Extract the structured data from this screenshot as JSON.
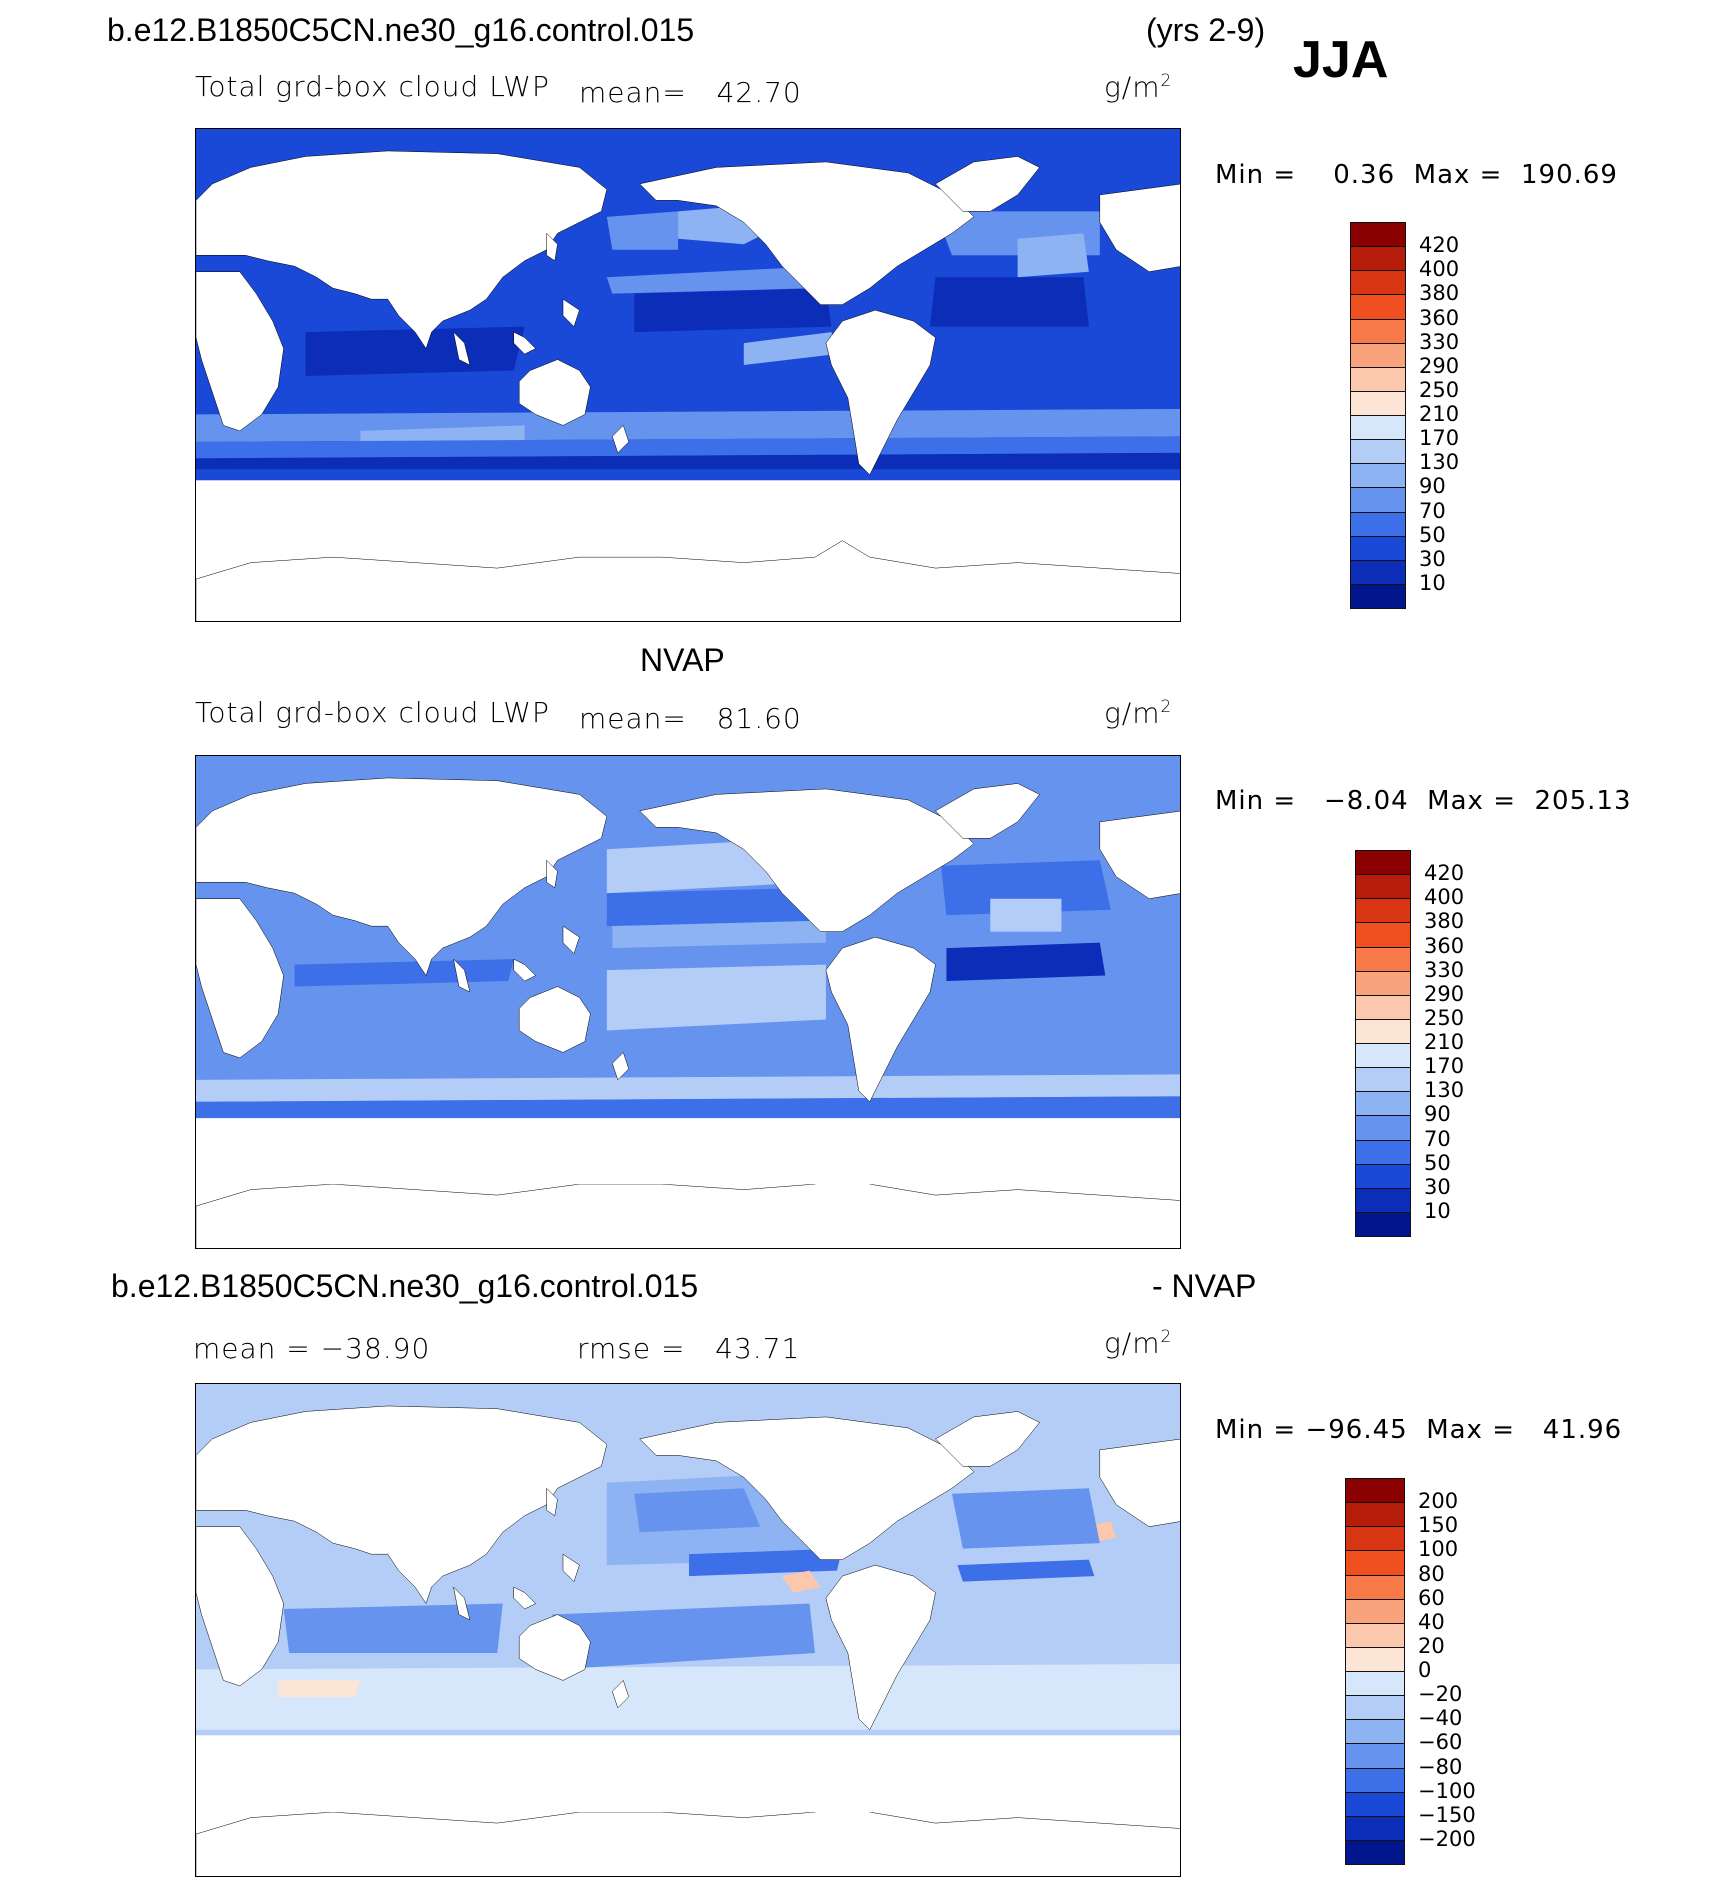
{
  "header": {
    "case_name": "b.e12.B1850C5CN.ne30_g16.control.015",
    "years": "(yrs 2-9)",
    "season": "JJA"
  },
  "panels": [
    {
      "id": "model",
      "variable": "Total grd-box cloud LWP",
      "stat_text": "mean=   42.70",
      "units_base": "g/m",
      "units_exp": "2",
      "minmax": "Min =    0.36  Max =  190.69"
    },
    {
      "id": "obs",
      "title": "NVAP",
      "variable": "Total grd-box cloud LWP",
      "stat_text": "mean=   81.60",
      "units_base": "g/m",
      "units_exp": "2",
      "minmax": "Min =   −8.04  Max =  205.13"
    },
    {
      "id": "diff",
      "title_left": "b.e12.B1850C5CN.ne30_g16.control.015",
      "title_right": "- NVAP",
      "mean_text": "mean = −38.90",
      "rmse_text": "rmse =   43.71",
      "units_base": "g/m",
      "units_exp": "2",
      "minmax": "Min = −96.45  Max =   41.96"
    }
  ],
  "colorbars": {
    "abs": {
      "levels": [
        "420",
        "400",
        "380",
        "360",
        "330",
        "290",
        "250",
        "210",
        "170",
        "130",
        "90",
        "70",
        "50",
        "30",
        "10"
      ],
      "colors": [
        "#8b0000",
        "#b51c0a",
        "#d83512",
        "#f05020",
        "#f87a48",
        "#f9a37c",
        "#fcc8ad",
        "#fde5d6",
        "#d6e6fb",
        "#b3cdf6",
        "#8eb3f2",
        "#6693ee",
        "#3c6fe8",
        "#1a49d8",
        "#0b2db8",
        "#01168c"
      ]
    },
    "diff": {
      "levels": [
        "200",
        "150",
        "100",
        "80",
        "60",
        "40",
        "20",
        "0",
        "−20",
        "−40",
        "−60",
        "−80",
        "−100",
        "−150",
        "−200"
      ],
      "colors": [
        "#8b0000",
        "#b51c0a",
        "#d83512",
        "#f05020",
        "#f87a48",
        "#f9a37c",
        "#fcc8ad",
        "#fde5d6",
        "#d6e6fb",
        "#b3cdf6",
        "#8eb3f2",
        "#6693ee",
        "#3c6fe8",
        "#1a49d8",
        "#0b2db8",
        "#01168c"
      ]
    }
  },
  "map_data": {
    "projection": "cylindrical-equidistant",
    "center_longitude": 180,
    "ocean_fill": {
      "model": "#1a49d8",
      "obs": "#6693ee",
      "diff": "#b3cdf6"
    }
  }
}
